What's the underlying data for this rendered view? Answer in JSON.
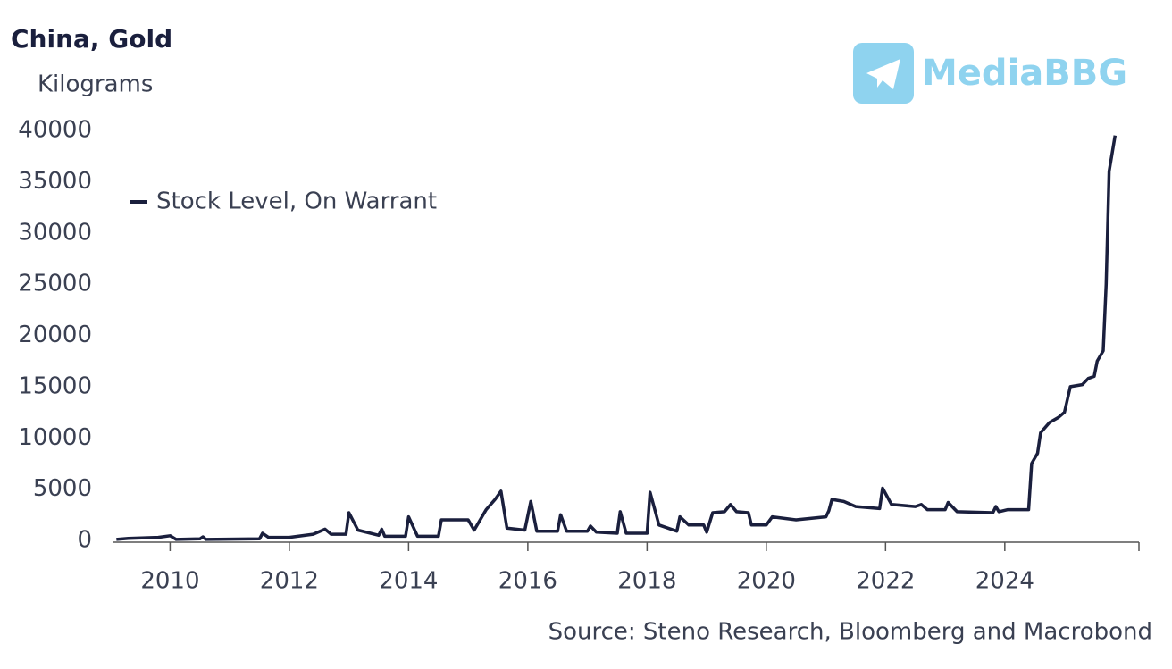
{
  "chart_data": {
    "type": "line",
    "title": "China, Gold",
    "subtitle": "Kilograms",
    "source": "Source: Steno Research, Bloomberg and Macrobond",
    "watermark": "MediaBBG",
    "legend": "upper left",
    "grid": false,
    "xlim": [
      2009.05,
      2026.25
    ],
    "xticks": [
      2010,
      2012,
      2014,
      2016,
      2018,
      2020,
      2022,
      2024
    ],
    "ylim": [
      0,
      40000
    ],
    "yticks": [
      0,
      5000,
      10000,
      15000,
      20000,
      25000,
      30000,
      35000,
      40000
    ],
    "x": [
      2009.1,
      2009.3,
      2009.8,
      2010.0,
      2010.1,
      2010.5,
      2010.55,
      2010.6,
      2011.5,
      2011.55,
      2011.65,
      2012.0,
      2012.4,
      2012.6,
      2012.7,
      2012.95,
      2013.0,
      2013.15,
      2013.5,
      2013.55,
      2013.6,
      2013.95,
      2014.0,
      2014.15,
      2014.5,
      2014.55,
      2015.0,
      2015.1,
      2015.3,
      2015.45,
      2015.55,
      2015.65,
      2015.95,
      2016.05,
      2016.15,
      2016.5,
      2016.55,
      2016.65,
      2017.0,
      2017.05,
      2017.15,
      2017.5,
      2017.55,
      2017.65,
      2018.0,
      2018.05,
      2018.2,
      2018.5,
      2018.55,
      2018.7,
      2018.95,
      2019.0,
      2019.1,
      2019.3,
      2019.4,
      2019.5,
      2019.7,
      2019.75,
      2020.0,
      2020.1,
      2020.5,
      2021.0,
      2021.05,
      2021.1,
      2021.3,
      2021.5,
      2021.9,
      2021.95,
      2022.1,
      2022.5,
      2022.6,
      2022.7,
      2023.0,
      2023.05,
      2023.2,
      2023.8,
      2023.85,
      2023.9,
      2024.05,
      2024.4,
      2024.45,
      2024.55,
      2024.6,
      2024.75,
      2024.9,
      2025.0,
      2025.1,
      2025.3,
      2025.4,
      2025.5,
      2025.55,
      2025.65,
      2025.7,
      2025.75,
      2025.85
    ],
    "series": [
      {
        "name": "Stock Level, On Warrant",
        "color": "#1a1f3d",
        "values": [
          100,
          200,
          300,
          450,
          100,
          150,
          350,
          100,
          150,
          700,
          300,
          300,
          600,
          1100,
          600,
          600,
          2700,
          1000,
          500,
          1100,
          400,
          400,
          2300,
          400,
          400,
          2000,
          2000,
          1000,
          3000,
          4000,
          4800,
          1200,
          1000,
          3800,
          900,
          900,
          2500,
          900,
          900,
          1400,
          800,
          700,
          2800,
          700,
          700,
          4700,
          1500,
          900,
          2300,
          1500,
          1500,
          800,
          2700,
          2800,
          3500,
          2800,
          2700,
          1500,
          1500,
          2300,
          2000,
          2300,
          2900,
          4000,
          3800,
          3300,
          3100,
          5100,
          3500,
          3300,
          3500,
          3000,
          3000,
          3700,
          2800,
          2700,
          3300,
          2800,
          3000,
          3000,
          7500,
          8500,
          10500,
          11500,
          12000,
          12500,
          15000,
          15200,
          15800,
          16000,
          17500,
          18500,
          25000,
          36000,
          39500
        ]
      }
    ]
  }
}
